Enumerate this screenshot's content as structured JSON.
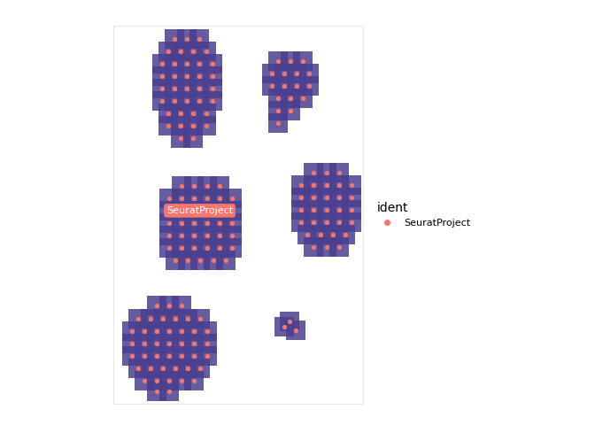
{
  "chart_data": {
    "type": "scatter",
    "legend_title": "ident",
    "legend": "right",
    "tick_labels": false,
    "xlim": [
      130,
      410
    ],
    "ylim": [
      455,
      30
    ],
    "annotations": [
      {
        "text": "SeuratProject"
      }
    ],
    "series": [
      {
        "name": "SeuratProject",
        "color": "#F8766D",
        "marker": "circle",
        "x": [
          199,
          213,
          227,
          192,
          206,
          220,
          234,
          185,
          199,
          213,
          227,
          241,
          185,
          199,
          213,
          227,
          241,
          185,
          199,
          213,
          227,
          241,
          185,
          199,
          213,
          227,
          241,
          192,
          206,
          220,
          234,
          192,
          206,
          220,
          234,
          206,
          220,
          315,
          329,
          343,
          308,
          322,
          336,
          350,
          308,
          322,
          336,
          350,
          315,
          329,
          343,
          315,
          329,
          315,
          207,
          221,
          235,
          249,
          193,
          207,
          221,
          235,
          249,
          263,
          193,
          207,
          221,
          235,
          249,
          263,
          193,
          207,
          221,
          235,
          249,
          263,
          193,
          207,
          221,
          235,
          249,
          263,
          193,
          207,
          221,
          235,
          249,
          263,
          200,
          214,
          228,
          242,
          256,
          355,
          369,
          383,
          341,
          355,
          369,
          383,
          397,
          341,
          355,
          369,
          383,
          397,
          341,
          355,
          369,
          383,
          397,
          341,
          355,
          369,
          383,
          397,
          348,
          362,
          376,
          390,
          355,
          369,
          383,
          179,
          193,
          207,
          158,
          172,
          186,
          200,
          214,
          228,
          151,
          165,
          179,
          193,
          207,
          221,
          235,
          151,
          165,
          179,
          193,
          207,
          221,
          235,
          151,
          165,
          179,
          193,
          207,
          221,
          235,
          158,
          172,
          186,
          200,
          214,
          228,
          165,
          179,
          193,
          207,
          221,
          179,
          193,
          328,
          335,
          322
        ],
        "values": [
          45,
          45,
          45,
          59,
          59,
          59,
          59,
          73,
          73,
          73,
          73,
          73,
          87,
          87,
          87,
          87,
          87,
          101,
          101,
          101,
          101,
          101,
          115,
          115,
          115,
          115,
          115,
          129,
          129,
          129,
          129,
          143,
          143,
          143,
          143,
          157,
          157,
          70,
          70,
          70,
          84,
          84,
          84,
          84,
          98,
          98,
          98,
          98,
          112,
          112,
          112,
          126,
          126,
          140,
          210,
          210,
          210,
          210,
          224,
          224,
          224,
          224,
          224,
          224,
          238,
          238,
          238,
          238,
          238,
          238,
          252,
          252,
          252,
          252,
          252,
          252,
          266,
          266,
          266,
          266,
          266,
          266,
          280,
          280,
          280,
          280,
          280,
          280,
          294,
          294,
          294,
          294,
          294,
          195,
          195,
          195,
          209,
          209,
          209,
          209,
          209,
          223,
          223,
          223,
          223,
          223,
          237,
          237,
          237,
          237,
          237,
          251,
          251,
          251,
          251,
          251,
          265,
          265,
          265,
          265,
          279,
          279,
          279,
          345,
          345,
          345,
          359,
          359,
          359,
          359,
          359,
          359,
          373,
          373,
          373,
          373,
          373,
          373,
          373,
          387,
          387,
          387,
          387,
          387,
          387,
          387,
          401,
          401,
          401,
          401,
          401,
          401,
          401,
          415,
          415,
          415,
          415,
          415,
          415,
          429,
          429,
          429,
          429,
          429,
          441,
          441,
          362,
          372,
          368
        ]
      }
    ]
  }
}
